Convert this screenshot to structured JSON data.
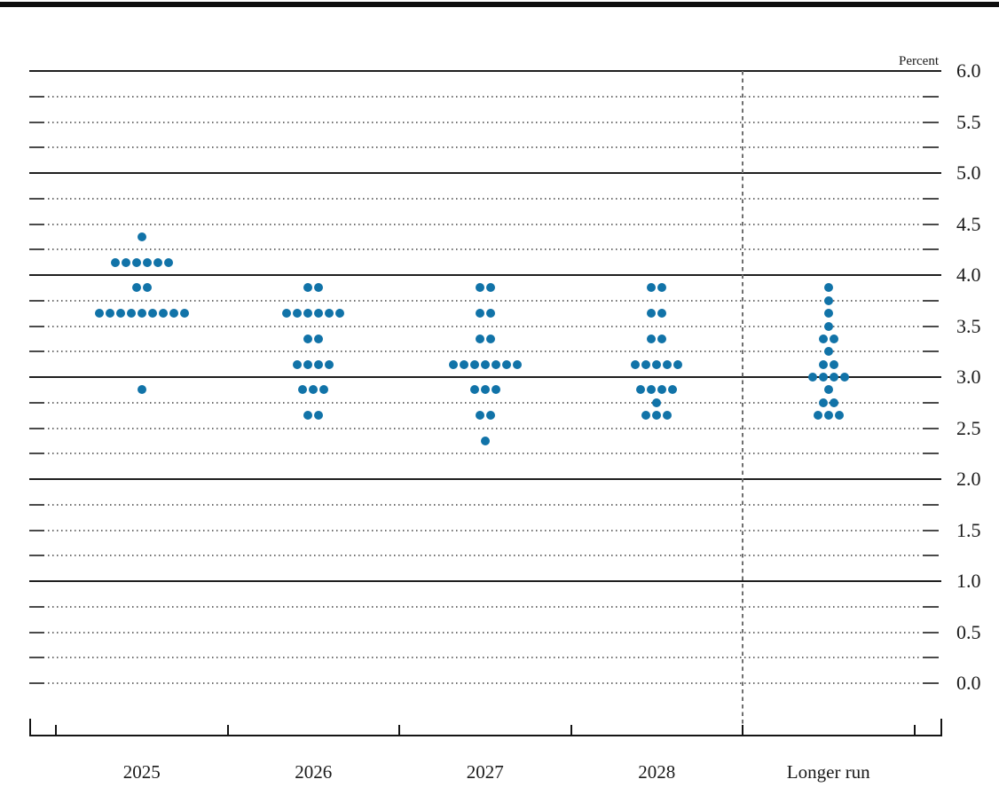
{
  "chart": {
    "percent_label": "Percent"
  },
  "chart_data": {
    "type": "scatter",
    "variant": "fomc-dot-plot",
    "categories": [
      "2025",
      "2026",
      "2027",
      "2028",
      "Longer run"
    ],
    "ylabel": "Percent",
    "ylim": [
      0.0,
      6.0
    ],
    "y_minor_step": 0.25,
    "y_label_step": 0.5,
    "y_tick_labels": [
      "6.0",
      "5.5",
      "5.0",
      "4.5",
      "4.0",
      "3.5",
      "3.0",
      "2.5",
      "2.0",
      "1.5",
      "1.0",
      "0.5",
      "0.0"
    ],
    "grid": "solid horizontal lines at integer percents (0.0 line dotted), dotted lines at each 0.25 step with short solid dashes at both edges; dashed vertical separator before Longer run column",
    "legend": "each dot = one FOMC participant's assessment; 19 dots per column",
    "series": [
      {
        "category": "2025",
        "dots": [
          {
            "rate": 4.375,
            "count": 1
          },
          {
            "rate": 4.125,
            "count": 6
          },
          {
            "rate": 3.875,
            "count": 2
          },
          {
            "rate": 3.625,
            "count": 9
          },
          {
            "rate": 2.875,
            "count": 1
          }
        ]
      },
      {
        "category": "2026",
        "dots": [
          {
            "rate": 3.875,
            "count": 2
          },
          {
            "rate": 3.625,
            "count": 6
          },
          {
            "rate": 3.375,
            "count": 2
          },
          {
            "rate": 3.125,
            "count": 4
          },
          {
            "rate": 2.875,
            "count": 3
          },
          {
            "rate": 2.625,
            "count": 2
          }
        ]
      },
      {
        "category": "2027",
        "dots": [
          {
            "rate": 3.875,
            "count": 2
          },
          {
            "rate": 3.625,
            "count": 2
          },
          {
            "rate": 3.375,
            "count": 2
          },
          {
            "rate": 3.125,
            "count": 7
          },
          {
            "rate": 2.875,
            "count": 3
          },
          {
            "rate": 2.625,
            "count": 2
          },
          {
            "rate": 2.375,
            "count": 1
          }
        ]
      },
      {
        "category": "2028",
        "dots": [
          {
            "rate": 3.875,
            "count": 2
          },
          {
            "rate": 3.625,
            "count": 2
          },
          {
            "rate": 3.375,
            "count": 2
          },
          {
            "rate": 3.125,
            "count": 5
          },
          {
            "rate": 2.875,
            "count": 4
          },
          {
            "rate": 2.75,
            "count": 1
          },
          {
            "rate": 2.625,
            "count": 3
          }
        ]
      },
      {
        "category": "Longer run",
        "dots": [
          {
            "rate": 3.875,
            "count": 1
          },
          {
            "rate": 3.75,
            "count": 1
          },
          {
            "rate": 3.625,
            "count": 1
          },
          {
            "rate": 3.5,
            "count": 1
          },
          {
            "rate": 3.375,
            "count": 2
          },
          {
            "rate": 3.25,
            "count": 1
          },
          {
            "rate": 3.125,
            "count": 2
          },
          {
            "rate": 3.0,
            "count": 4
          },
          {
            "rate": 2.875,
            "count": 1
          },
          {
            "rate": 2.75,
            "count": 2
          },
          {
            "rate": 2.625,
            "count": 3
          }
        ]
      }
    ],
    "colors": {
      "dot": "#1173A8",
      "grid_solid": "#1f1f1f",
      "grid_dotted": "#6e6e6e",
      "separator": "#6f6f6f",
      "text": "#1a1a1a"
    }
  }
}
